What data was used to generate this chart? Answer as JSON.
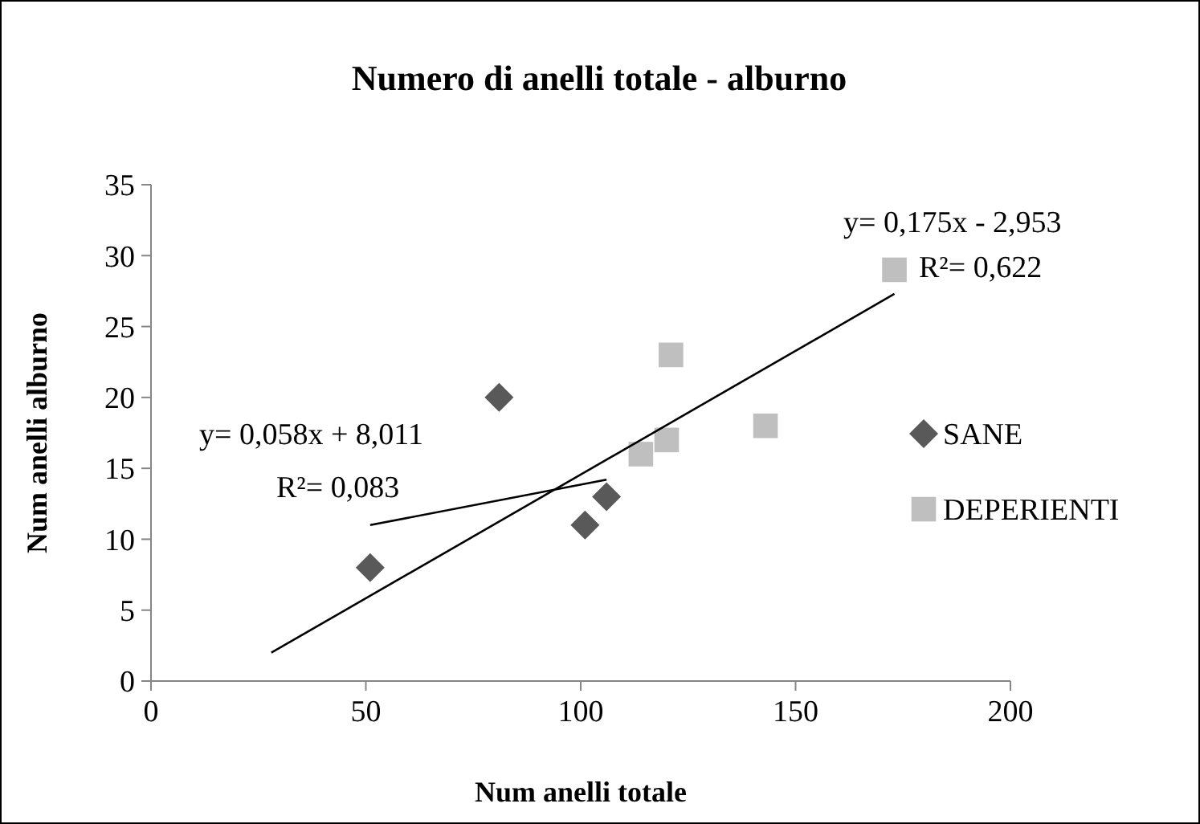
{
  "chart_data": {
    "type": "scatter",
    "title": "Numero di anelli  totale - alburno",
    "xlabel": "Num anelli totale",
    "ylabel": "Num anelli alburno",
    "xlim": [
      0,
      200
    ],
    "xticks": [
      0,
      50,
      100,
      150,
      200
    ],
    "ylim": [
      0,
      35
    ],
    "yticks": [
      0,
      5,
      10,
      15,
      20,
      25,
      30,
      35
    ],
    "grid": false,
    "legend": "right",
    "series": [
      {
        "name": "SANE",
        "color": "#595959",
        "marker": "diamond",
        "x": [
          51,
          81,
          101,
          106
        ],
        "values": [
          8,
          20,
          11,
          13
        ]
      },
      {
        "name": "DEPERIENTI",
        "color": "#bfbfbf",
        "marker": "square",
        "x": [
          114,
          120,
          121,
          143,
          173
        ],
        "values": [
          16,
          17,
          23,
          18,
          29
        ]
      },
      {
        "type": "line",
        "color": "#000000",
        "marker": "none",
        "x": [
          51,
          106
        ],
        "values": [
          11.0,
          14.2
        ]
      },
      {
        "type": "line",
        "color": "#000000",
        "marker": "none",
        "x": [
          28,
          173
        ],
        "values": [
          2.0,
          27.3
        ]
      }
    ],
    "annotations": [
      "y= 0,175x - 2,953",
      "R²= 0,622",
      "y= 0,058x + 8,011",
      "R²= 0,083"
    ]
  }
}
